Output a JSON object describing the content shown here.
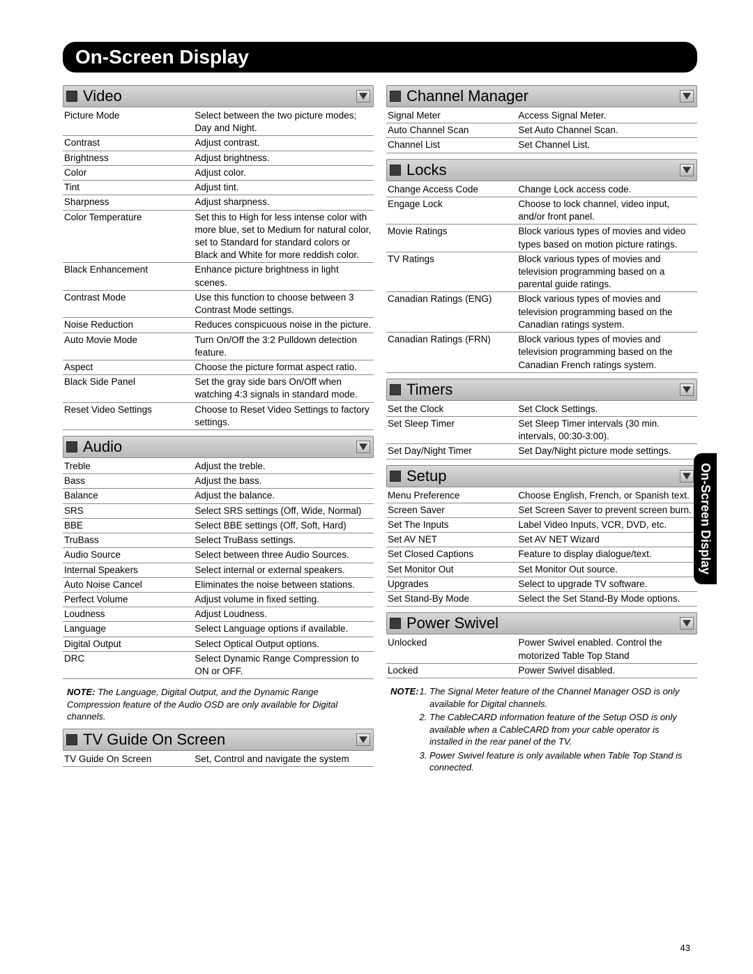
{
  "page_title": "On-Screen Display",
  "side_tab": "On-Screen Display",
  "page_number": "43",
  "sections_left": [
    {
      "title": "Video",
      "rows": [
        [
          "Picture Mode",
          "Select between the two picture modes; Day and Night."
        ],
        [
          "Contrast",
          "Adjust contrast."
        ],
        [
          "Brightness",
          "Adjust brightness."
        ],
        [
          "Color",
          "Adjust color."
        ],
        [
          "Tint",
          "Adjust tint."
        ],
        [
          "Sharpness",
          "Adjust sharpness."
        ],
        [
          "Color Temperature",
          "Set this to High for less intense color with more blue, set to Medium for natural color, set to Standard for standard colors or Black and White for more reddish color."
        ],
        [
          "Black Enhancement",
          "Enhance picture brightness in light scenes."
        ],
        [
          "Contrast Mode",
          "Use this function to choose between 3 Contrast Mode settings."
        ],
        [
          "Noise Reduction",
          "Reduces conspicuous noise in the picture."
        ],
        [
          "Auto Movie Mode",
          "Turn On/Off the 3:2 Pulldown detection feature."
        ],
        [
          "Aspect",
          "Choose the picture format aspect ratio."
        ],
        [
          "Black Side Panel",
          "Set the gray side bars On/Off when watching 4:3 signals in standard mode."
        ],
        [
          "Reset Video Settings",
          "Choose to Reset Video Settings to factory settings."
        ]
      ]
    },
    {
      "title": "Audio",
      "rows": [
        [
          "Treble",
          "Adjust the treble."
        ],
        [
          "Bass",
          "Adjust the bass."
        ],
        [
          "Balance",
          "Adjust the balance."
        ],
        [
          "SRS",
          "Select SRS settings (Off, Wide, Normal)"
        ],
        [
          "BBE",
          "Select BBE settings (Off, Soft, Hard)"
        ],
        [
          "TruBass",
          "Select TruBass settings."
        ],
        [
          "Audio Source",
          "Select between three Audio Sources."
        ],
        [
          "Internal Speakers",
          "Select internal or external speakers."
        ],
        [
          "Auto Noise Cancel",
          "Eliminates the noise between stations."
        ],
        [
          "Perfect Volume",
          "Adjust volume in fixed setting."
        ],
        [
          "Loudness",
          "Adjust Loudness."
        ],
        [
          "Language",
          "Select Language options if available."
        ],
        [
          "Digital Output",
          "Select Optical Output options."
        ],
        [
          "DRC",
          "Select Dynamic Range Compression to ON or OFF."
        ]
      ]
    }
  ],
  "note_left": "The Language, Digital Output, and the Dynamic Range Compression feature of the Audio OSD are only available for Digital channels.",
  "section_left_last": {
    "title": "TV Guide On Screen",
    "rows": [
      [
        "TV Guide On Screen",
        "Set, Control and navigate the system"
      ]
    ]
  },
  "sections_right": [
    {
      "title": "Channel Manager",
      "rows": [
        [
          "Signal Meter",
          "Access Signal Meter."
        ],
        [
          "Auto Channel Scan",
          "Set Auto Channel Scan."
        ],
        [
          "Channel List",
          "Set Channel List."
        ]
      ]
    },
    {
      "title": "Locks",
      "rows": [
        [
          "Change Access Code",
          "Change Lock access code."
        ],
        [
          "Engage Lock",
          "Choose to lock channel, video input, and/or front panel."
        ],
        [
          "Movie Ratings",
          "Block various types of movies and video types based on motion picture ratings."
        ],
        [
          "TV Ratings",
          "Block various types of movies and television programming based on a parental guide ratings."
        ],
        [
          "Canadian Ratings (ENG)",
          "Block various types of movies and television programming based on the Canadian ratings system."
        ],
        [
          "Canadian Ratings (FRN)",
          "Block various types of movies and television programming based on the Canadian French ratings system."
        ]
      ]
    },
    {
      "title": "Timers",
      "rows": [
        [
          "Set the Clock",
          "Set Clock Settings."
        ],
        [
          "Set Sleep Timer",
          "Set Sleep Timer intervals (30 min. intervals, 00:30-3:00)."
        ],
        [
          "Set Day/Night Timer",
          "Set Day/Night picture mode settings."
        ]
      ]
    },
    {
      "title": "Setup",
      "rows": [
        [
          "Menu Preference",
          "Choose English, French, or Spanish text."
        ],
        [
          "Screen Saver",
          "Set Screen Saver to prevent screen burn."
        ],
        [
          "Set The Inputs",
          "Label Video Inputs, VCR, DVD, etc."
        ],
        [
          "Set AV NET",
          "Set AV NET Wizard"
        ],
        [
          "Set Closed Captions",
          "Feature to display dialogue/text."
        ],
        [
          "Set Monitor Out",
          "Set Monitor Out source."
        ],
        [
          "Upgrades",
          "Select to upgrade TV software."
        ],
        [
          "Set Stand-By Mode",
          "Select the Set Stand-By Mode options."
        ]
      ]
    },
    {
      "title": "Power Swivel",
      "rows": [
        [
          "Unlocked",
          "Power Swivel enabled.  Control the motorized Table Top Stand"
        ],
        [
          "Locked",
          "Power Swivel disabled."
        ]
      ]
    }
  ],
  "note_right_label": "NOTE:",
  "note_right_items": [
    "The Signal Meter feature of the Channel Manager OSD is only available for Digital channels.",
    "The CableCARD information feature of the Setup OSD is only available when a CableCARD from your cable operator is installed in the rear panel of the TV.",
    "Power Swivel feature is only available when Table Top Stand is connected."
  ],
  "note_label": "NOTE:"
}
